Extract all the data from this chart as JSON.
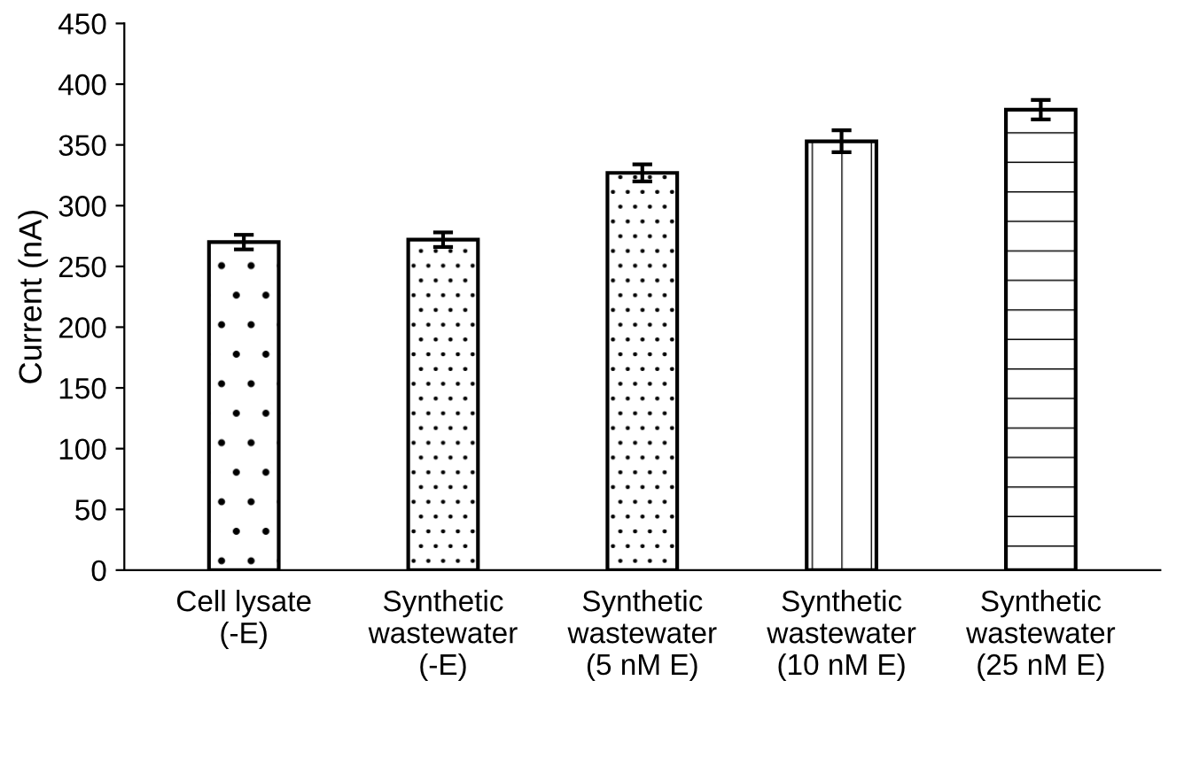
{
  "chart_data": {
    "type": "bar",
    "ylabel": "Current (nA)",
    "categories": [
      "Cell lysate\n(-E)",
      "Synthetic\nwastewater\n(-E)",
      "Synthetic\nwastewater\n(5 nM E)",
      "Synthetic\nwastewater\n(10 nM E)",
      "Synthetic\nwastewater\n(25 nM E)"
    ],
    "values": [
      270,
      272,
      327,
      353,
      379
    ],
    "errors": [
      6,
      6,
      7,
      9,
      8
    ],
    "ylim": [
      0,
      450
    ],
    "yticks": [
      0,
      50,
      100,
      150,
      200,
      250,
      300,
      350,
      400,
      450
    ],
    "grid": false,
    "legend": false
  }
}
